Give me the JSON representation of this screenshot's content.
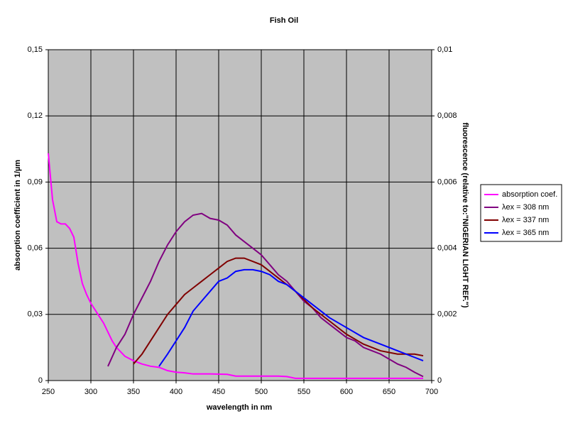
{
  "chart_data": {
    "type": "line",
    "title": "Fish Oil",
    "x_label": "wavelength in nm",
    "y_label": "absorption coefficient in 1/µm",
    "y2_label": "fluorescence  (relative to:\"NIGERIAN LIGHT REF.\")",
    "xlim": [
      250,
      700
    ],
    "xticks": [
      250,
      300,
      350,
      400,
      450,
      500,
      550,
      600,
      650,
      700
    ],
    "ylim": [
      0,
      0.15
    ],
    "yticks": [
      0,
      {
        "value": 0.03,
        "label": "0,03"
      },
      {
        "value": 0.06,
        "label": "0,06"
      },
      {
        "value": 0.09,
        "label": "0,09"
      },
      {
        "value": 0.12,
        "label": "0,12"
      },
      {
        "value": 0.15,
        "label": "0,15"
      }
    ],
    "y2lim": [
      0,
      0.01
    ],
    "y2ticks": [
      0,
      {
        "value": 0.002,
        "label": "0,002"
      },
      {
        "value": 0.004,
        "label": "0,004"
      },
      {
        "value": 0.006,
        "label": "0,006"
      },
      {
        "value": 0.008,
        "label": "0,008"
      },
      {
        "value": 0.01,
        "label": "0,01"
      }
    ],
    "grid": true,
    "legend": "right",
    "series": [
      {
        "name": "absorption coef.",
        "color": "#ff00ff",
        "x": [
          250,
          255,
          260,
          265,
          270,
          275,
          280,
          285,
          290,
          295,
          300,
          305,
          310,
          315,
          320,
          325,
          330,
          335,
          340,
          345,
          350,
          360,
          370,
          380,
          390,
          400,
          410,
          420,
          440,
          460,
          470,
          500,
          520,
          530,
          540,
          600,
          690
        ],
        "values": [
          0.103,
          0.082,
          0.072,
          0.071,
          0.071,
          0.069,
          0.065,
          0.053,
          0.044,
          0.039,
          0.035,
          0.032,
          0.029,
          0.026,
          0.022,
          0.018,
          0.015,
          0.013,
          0.011,
          0.01,
          0.009,
          0.0075,
          0.0065,
          0.006,
          0.0045,
          0.0038,
          0.0035,
          0.003,
          0.003,
          0.0028,
          0.002,
          0.002,
          0.002,
          0.0018,
          0.001,
          0.001,
          0.001
        ]
      },
      {
        "name": "λex = 308 nm",
        "color": "#800080",
        "axis": "y2",
        "x": [
          320,
          330,
          340,
          350,
          360,
          370,
          380,
          390,
          400,
          410,
          420,
          430,
          440,
          450,
          460,
          470,
          480,
          490,
          500,
          510,
          520,
          530,
          540,
          550,
          560,
          570,
          580,
          590,
          600,
          610,
          620,
          630,
          640,
          650,
          660,
          670,
          680,
          690
        ],
        "values": [
          0.00043,
          0.001,
          0.0014,
          0.002,
          0.0025,
          0.003,
          0.0036,
          0.0041,
          0.0045,
          0.0048,
          0.005,
          0.00505,
          0.0049,
          0.00485,
          0.0047,
          0.0044,
          0.0042,
          0.004,
          0.0038,
          0.0035,
          0.0032,
          0.003,
          0.0027,
          0.0024,
          0.0022,
          0.0019,
          0.0017,
          0.0015,
          0.0013,
          0.0012,
          0.001,
          0.0009,
          0.0008,
          0.00065,
          0.0005,
          0.0004,
          0.00025,
          0.00012
        ]
      },
      {
        "name": "λex = 337 nm",
        "color": "#800000",
        "axis": "y2",
        "x": [
          350,
          360,
          370,
          380,
          390,
          400,
          410,
          420,
          430,
          440,
          450,
          460,
          470,
          480,
          490,
          500,
          510,
          520,
          530,
          540,
          560,
          580,
          600,
          620,
          640,
          660,
          680,
          690
        ],
        "values": [
          0.0005,
          0.0008,
          0.0012,
          0.0016,
          0.002,
          0.0023,
          0.0026,
          0.0028,
          0.003,
          0.0032,
          0.0034,
          0.0036,
          0.0037,
          0.0037,
          0.0036,
          0.0035,
          0.0033,
          0.0031,
          0.0029,
          0.0027,
          0.0022,
          0.0018,
          0.0014,
          0.0011,
          0.0009,
          0.0008,
          0.0008,
          0.00075
        ]
      },
      {
        "name": "λex = 365 nm",
        "color": "#0000ff",
        "axis": "y2",
        "x": [
          380,
          390,
          400,
          410,
          420,
          430,
          440,
          450,
          460,
          470,
          480,
          490,
          500,
          510,
          520,
          530,
          540,
          560,
          580,
          600,
          620,
          640,
          660,
          680,
          690
        ],
        "values": [
          0.00043,
          0.0008,
          0.0012,
          0.0016,
          0.0021,
          0.0024,
          0.0027,
          0.003,
          0.0031,
          0.0033,
          0.00335,
          0.00335,
          0.0033,
          0.0032,
          0.003,
          0.0029,
          0.0027,
          0.0023,
          0.0019,
          0.0016,
          0.0013,
          0.0011,
          0.0009,
          0.0007,
          0.0006
        ]
      }
    ]
  }
}
